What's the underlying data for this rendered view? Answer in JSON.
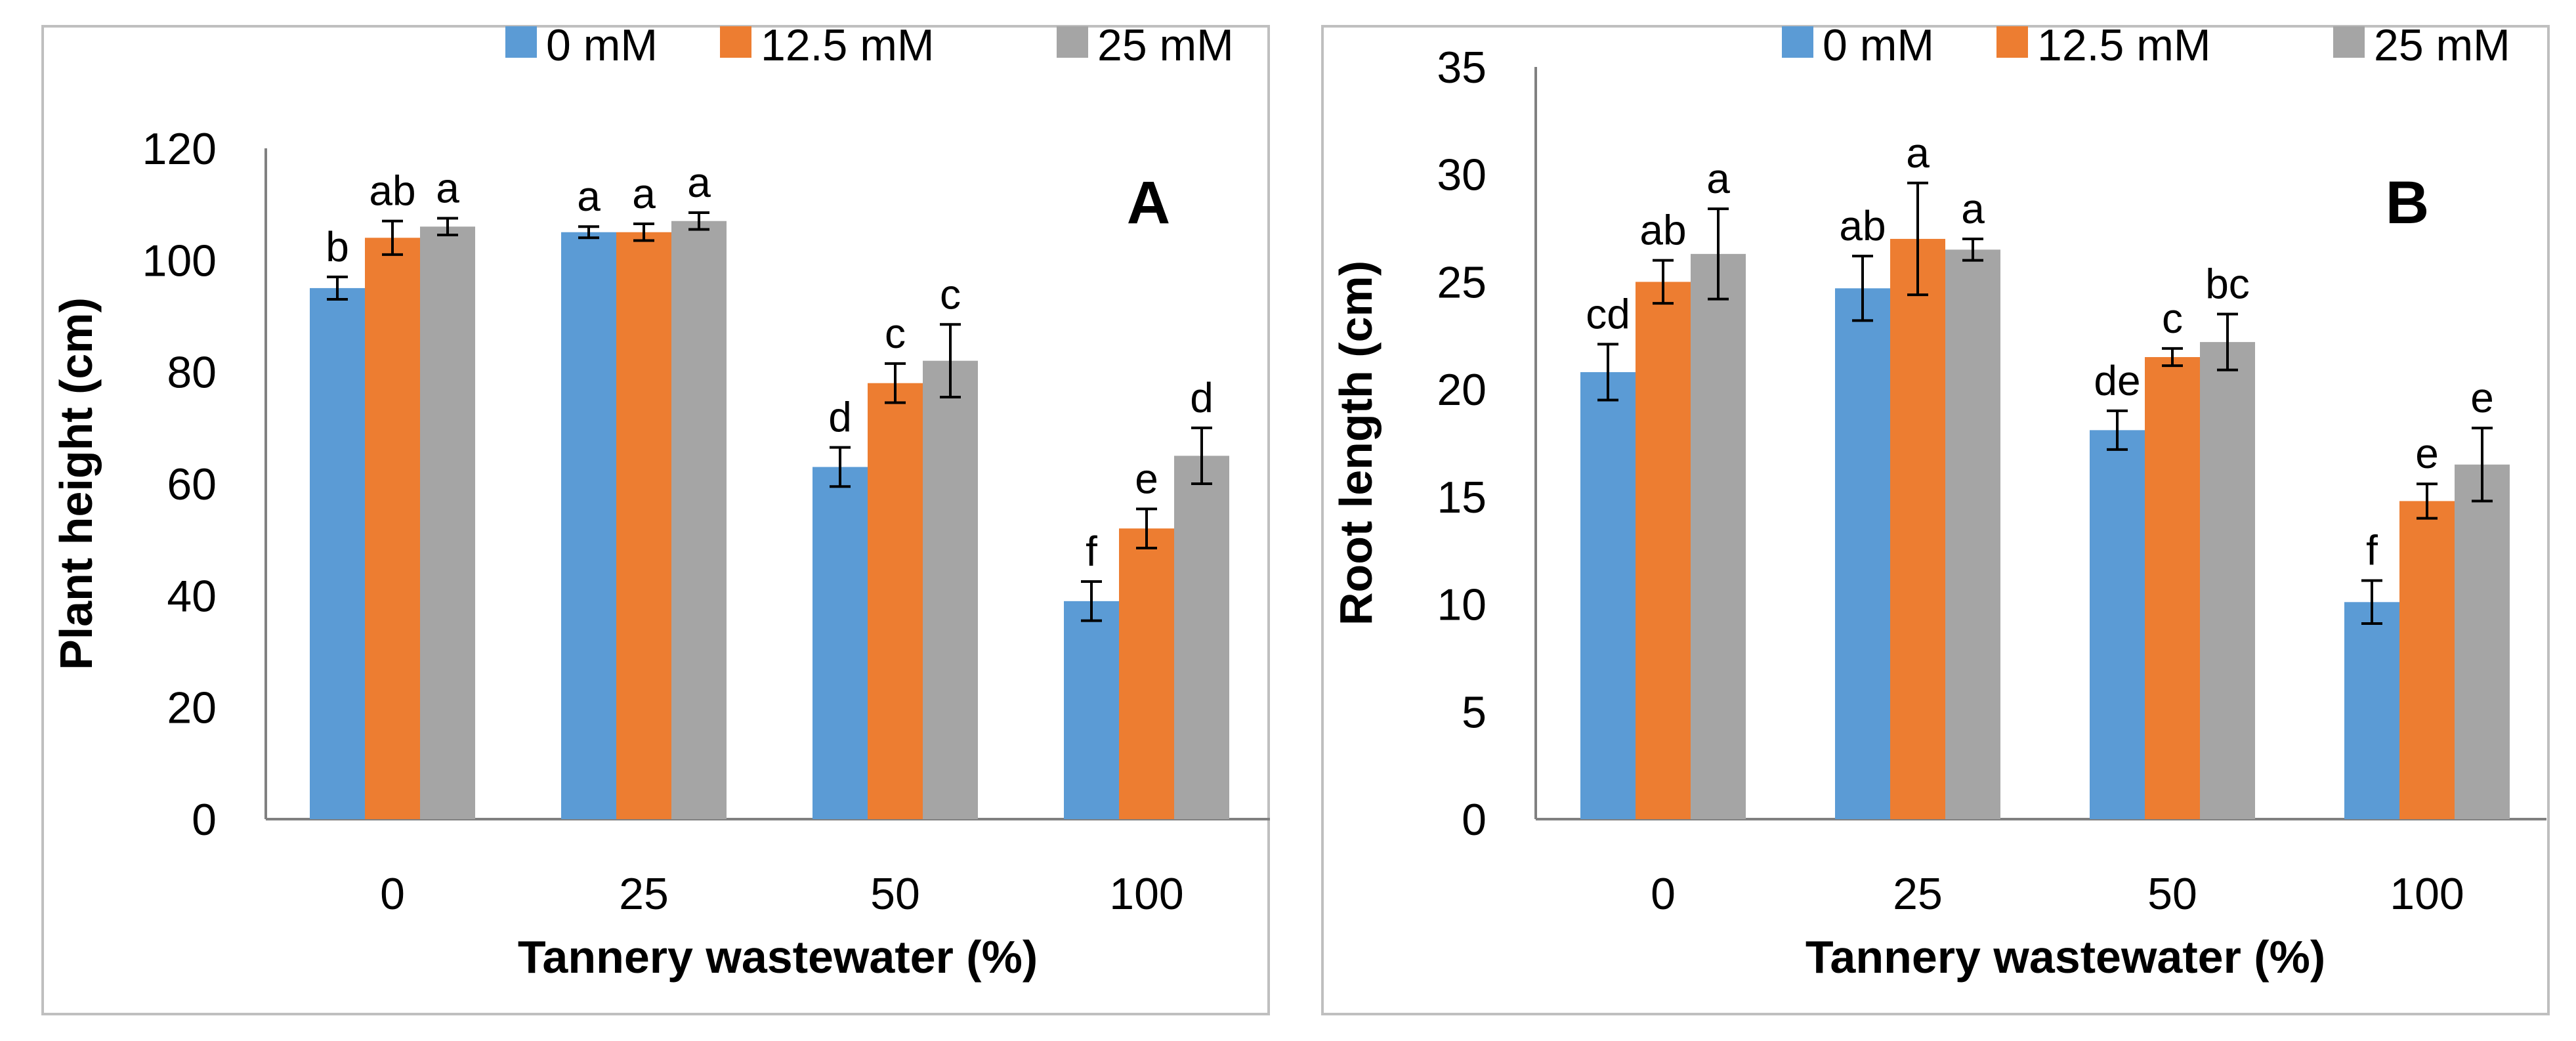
{
  "chart_data": [
    {
      "type": "bar",
      "panel_label": "A",
      "title": "",
      "xlabel": "Tannery wastewater (%)",
      "ylabel": "Plant height (cm)",
      "ylim": [
        0,
        120
      ],
      "ytick_step": 20,
      "categories": [
        "0",
        "25",
        "50",
        "100"
      ],
      "legend_position": "top-right",
      "series": [
        {
          "name": "0 mM",
          "color": "#5B9BD5",
          "values": [
            95,
            105,
            63,
            39
          ],
          "errors": [
            2,
            1,
            3.5,
            3.5
          ],
          "labels": [
            "b",
            "a",
            "d",
            "f"
          ]
        },
        {
          "name": "12.5 mM",
          "color": "#ED7D31",
          "values": [
            104,
            105,
            78,
            52
          ],
          "errors": [
            3,
            1.5,
            3.5,
            3.5
          ],
          "labels": [
            "ab",
            "a",
            "c",
            "e"
          ]
        },
        {
          "name": "25 mM",
          "color": "#A5A5A5",
          "values": [
            106,
            107,
            82,
            65
          ],
          "errors": [
            1.5,
            1.5,
            6.5,
            5
          ],
          "labels": [
            "a",
            "a",
            "c",
            "d"
          ]
        }
      ]
    },
    {
      "type": "bar",
      "panel_label": "B",
      "title": "",
      "xlabel": "Tannery wastewater (%)",
      "ylabel": "Root length (cm)",
      "ylim": [
        0,
        35
      ],
      "ytick_step": 5,
      "categories": [
        "0",
        "25",
        "50",
        "100"
      ],
      "legend_position": "top-right",
      "series": [
        {
          "name": "0 mM",
          "color": "#5B9BD5",
          "values": [
            20.8,
            24.7,
            18.1,
            10.1
          ],
          "errors": [
            1.3,
            1.5,
            0.9,
            1.0
          ],
          "labels": [
            "cd",
            "ab",
            "de",
            "f"
          ]
        },
        {
          "name": "12.5 mM",
          "color": "#ED7D31",
          "values": [
            25.0,
            27.0,
            21.5,
            14.8
          ],
          "errors": [
            1.0,
            2.6,
            0.4,
            0.8
          ],
          "labels": [
            "ab",
            "a",
            "c",
            "e"
          ]
        },
        {
          "name": "25 mM",
          "color": "#A5A5A5",
          "values": [
            26.3,
            26.5,
            22.2,
            16.5
          ],
          "errors": [
            2.1,
            0.5,
            1.3,
            1.7
          ],
          "labels": [
            "a",
            "a",
            "bc",
            "e"
          ]
        }
      ]
    }
  ]
}
